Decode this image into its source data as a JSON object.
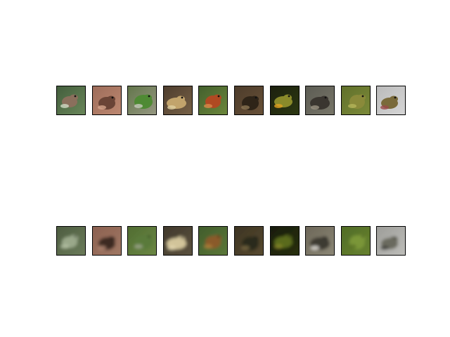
{
  "figure": {
    "background": "#ffffff",
    "rows": [
      {
        "name": "original-row",
        "blur": 0,
        "images": [
          {
            "subject": "frog",
            "bg": [
              "#3f5a3a",
              "#6d8a5c"
            ],
            "body": "#8a6f5c",
            "accent": "#cfd9c4"
          },
          {
            "subject": "frog",
            "bg": [
              "#9a6a58",
              "#c08a72"
            ],
            "body": "#6a4436",
            "accent": "#d4a58c"
          },
          {
            "subject": "frog",
            "bg": [
              "#5e7346",
              "#9a9a86"
            ],
            "body": "#4f8a34",
            "accent": "#c9c9bf"
          },
          {
            "subject": "frog",
            "bg": [
              "#4a3a2c",
              "#7a6448"
            ],
            "body": "#c2a46c",
            "accent": "#e0cfa0"
          },
          {
            "subject": "frog",
            "bg": [
              "#3f5c2c",
              "#6f8a3c"
            ],
            "body": "#b04a22",
            "accent": "#d98a4a"
          },
          {
            "subject": "frog",
            "bg": [
              "#4a3a2a",
              "#6a5238"
            ],
            "body": "#2e2418",
            "accent": "#8a7452"
          },
          {
            "subject": "frog",
            "bg": [
              "#1a1e0e",
              "#2e3a12"
            ],
            "body": "#8a8a2a",
            "accent": "#e0a020"
          },
          {
            "subject": "frog",
            "bg": [
              "#5a5a52",
              "#7a786a"
            ],
            "body": "#3a3630",
            "accent": "#9a9282"
          },
          {
            "subject": "frog",
            "bg": [
              "#5e6e2a",
              "#7e8c3a"
            ],
            "body": "#8a8a3a",
            "accent": "#b4b45a"
          },
          {
            "subject": "frog",
            "bg": [
              "#b8b8b8",
              "#d8d8d8"
            ],
            "body": "#7a6a3a",
            "accent": "#9a4a4a"
          }
        ]
      },
      {
        "name": "reconstruction-row",
        "blur": 2.2,
        "images": [
          {
            "subject": "frog",
            "bg": [
              "#4a5a3e",
              "#6e7e5c"
            ],
            "body": "#9aa88a",
            "accent": "#b8c4a8"
          },
          {
            "subject": "frog",
            "bg": [
              "#8a5e4e",
              "#a27a66"
            ],
            "body": "#3e2a24",
            "accent": "#b48a74"
          },
          {
            "subject": "frog",
            "bg": [
              "#4e6a30",
              "#6e8a46"
            ],
            "body": "#5a7a3a",
            "accent": "#a0a890"
          },
          {
            "subject": "frog",
            "bg": [
              "#3e362a",
              "#5e5440"
            ],
            "body": "#d2c49a",
            "accent": "#e8dcb4"
          },
          {
            "subject": "frog",
            "bg": [
              "#3e5a2a",
              "#5e7a3a"
            ],
            "body": "#8a5a2a",
            "accent": "#b0803a"
          },
          {
            "subject": "frog",
            "bg": [
              "#3a3222",
              "#5a4c30"
            ],
            "body": "#2a2a1a",
            "accent": "#7a6a44"
          },
          {
            "subject": "frog",
            "bg": [
              "#161a0c",
              "#2a3212"
            ],
            "body": "#5a6a1e",
            "accent": "#8a8a2a"
          },
          {
            "subject": "frog",
            "bg": [
              "#6a6456",
              "#8e8a78"
            ],
            "body": "#3e3a32",
            "accent": "#e8e6e0"
          },
          {
            "subject": "frog",
            "bg": [
              "#4e6a26",
              "#6a8430"
            ],
            "body": "#7a9638",
            "accent": "#5a7226"
          },
          {
            "subject": "frog",
            "bg": [
              "#9a9a96",
              "#c0c0bc"
            ],
            "body": "#6a6a5e",
            "accent": "#3a3a34"
          }
        ]
      }
    ]
  }
}
